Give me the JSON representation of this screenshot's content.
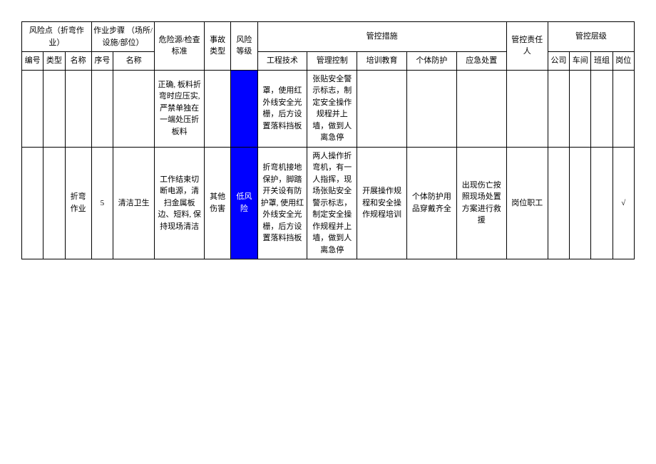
{
  "table": {
    "header_group_risk_point": "风险点（折弯作业）",
    "header_group_steps": "作业步骤\n（场所/设施/部位）",
    "header_hazard": "危险源/检查标准",
    "header_accident": "事故类型",
    "header_risk_level": "风险等级",
    "header_control_measures": "管控措施",
    "header_responsible": "管控责任人",
    "header_control_level": "管控层级",
    "header_sub_id": "编号",
    "header_sub_type": "类型",
    "header_sub_name": "名称",
    "header_sub_seq": "序号",
    "header_sub_step_name": "名称",
    "header_sub_engineering": "工程技术",
    "header_sub_mgmt": "管理控制",
    "header_sub_training": "培训教育",
    "header_sub_ppe": "个体防护",
    "header_sub_emergency": "应急处置",
    "header_sub_company": "公司",
    "header_sub_workshop": "车间",
    "header_sub_team": "班组",
    "header_sub_position": "岗位",
    "row1": {
      "hazard": "正确, 板料折弯时应压实, 严禁单独在一端处压折板料",
      "engineering": "罩，使用红外线安全光栅，后方设置落料挡板",
      "mgmt": "张贴安全警示标志，制定安全操作规程并上墙，做到人离急停"
    },
    "row2": {
      "name": "折弯作业",
      "seq": "5",
      "step_name": "清洁卫生",
      "hazard": "工作结束切断电源，清扫金属板边、短料, 保持现场清洁",
      "accident": "其他伤害",
      "risk_level": "低风险",
      "engineering": "折弯机接地保护，脚踏开关设有防护罩, 使用红外线安全光栅，后方设置落料挡板",
      "mgmt": "两人操作折弯机，有一人指挥，现场张贴安全警示标志，制定安全操作规程并上墙，做到人离急停",
      "training": "开展操作规程和安全操作规程培训",
      "ppe": "个体防护用品穿戴齐全",
      "emergency": "出现伤亡按照现场处置方案进行救援",
      "responsible": "岗位职工",
      "position": "√"
    },
    "colors": {
      "risk_bg": "#0000ff",
      "risk_fg": "#ffffff",
      "border": "#000000",
      "page_bg": "#ffffff"
    },
    "fontsize": 11
  }
}
